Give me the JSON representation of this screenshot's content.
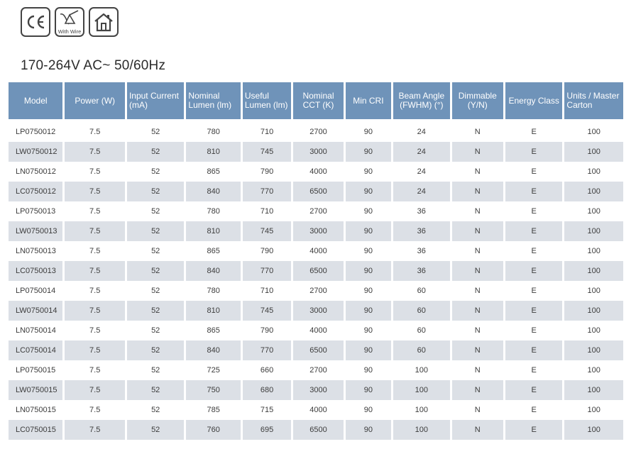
{
  "icons": [
    {
      "name": "ce-mark-icon",
      "label": "CE"
    },
    {
      "name": "with-wire-icon",
      "label": "With Wire"
    },
    {
      "name": "indoor-use-icon",
      "label": ""
    }
  ],
  "voltage_heading": "170-264V AC~ 50/60Hz",
  "table": {
    "headers": [
      {
        "line1": "Model",
        "line2": ""
      },
      {
        "line1": "Power (W)",
        "line2": ""
      },
      {
        "line1": "Input Current",
        "line2": "(mA)"
      },
      {
        "line1": "Nominal",
        "line2": "Lumen (lm)"
      },
      {
        "line1": "Useful",
        "line2": "Lumen (lm)"
      },
      {
        "line1": "Nominal",
        "line2": "CCT (K)"
      },
      {
        "line1": "Min CRI",
        "line2": ""
      },
      {
        "line1": "Beam Angle",
        "line2": "(FWHM) (°)"
      },
      {
        "line1": "Dimmable",
        "line2": "(Y/N)"
      },
      {
        "line1": "Energy Class",
        "line2": ""
      },
      {
        "line1": "Units / Master",
        "line2": "Carton"
      }
    ],
    "rows": [
      [
        "LP0750012",
        "7.5",
        "52",
        "780",
        "710",
        "2700",
        "90",
        "24",
        "N",
        "E",
        "100"
      ],
      [
        "LW0750012",
        "7.5",
        "52",
        "810",
        "745",
        "3000",
        "90",
        "24",
        "N",
        "E",
        "100"
      ],
      [
        "LN0750012",
        "7.5",
        "52",
        "865",
        "790",
        "4000",
        "90",
        "24",
        "N",
        "E",
        "100"
      ],
      [
        "LC0750012",
        "7.5",
        "52",
        "840",
        "770",
        "6500",
        "90",
        "24",
        "N",
        "E",
        "100"
      ],
      [
        "LP0750013",
        "7.5",
        "52",
        "780",
        "710",
        "2700",
        "90",
        "36",
        "N",
        "E",
        "100"
      ],
      [
        "LW0750013",
        "7.5",
        "52",
        "810",
        "745",
        "3000",
        "90",
        "36",
        "N",
        "E",
        "100"
      ],
      [
        "LN0750013",
        "7.5",
        "52",
        "865",
        "790",
        "4000",
        "90",
        "36",
        "N",
        "E",
        "100"
      ],
      [
        "LC0750013",
        "7.5",
        "52",
        "840",
        "770",
        "6500",
        "90",
        "36",
        "N",
        "E",
        "100"
      ],
      [
        "LP0750014",
        "7.5",
        "52",
        "780",
        "710",
        "2700",
        "90",
        "60",
        "N",
        "E",
        "100"
      ],
      [
        "LW0750014",
        "7.5",
        "52",
        "810",
        "745",
        "3000",
        "90",
        "60",
        "N",
        "E",
        "100"
      ],
      [
        "LN0750014",
        "7.5",
        "52",
        "865",
        "790",
        "4000",
        "90",
        "60",
        "N",
        "E",
        "100"
      ],
      [
        "LC0750014",
        "7.5",
        "52",
        "840",
        "770",
        "6500",
        "90",
        "60",
        "N",
        "E",
        "100"
      ],
      [
        "LP0750015",
        "7.5",
        "52",
        "725",
        "660",
        "2700",
        "90",
        "100",
        "N",
        "E",
        "100"
      ],
      [
        "LW0750015",
        "7.5",
        "52",
        "750",
        "680",
        "3000",
        "90",
        "100",
        "N",
        "E",
        "100"
      ],
      [
        "LN0750015",
        "7.5",
        "52",
        "785",
        "715",
        "4000",
        "90",
        "100",
        "N",
        "E",
        "100"
      ],
      [
        "LC0750015",
        "7.5",
        "52",
        "760",
        "695",
        "6500",
        "90",
        "100",
        "N",
        "E",
        "100"
      ]
    ]
  },
  "colors": {
    "header_bg": "#6f93b9",
    "shaded_row": "#dce0e6",
    "text": "#3c3c3c"
  }
}
